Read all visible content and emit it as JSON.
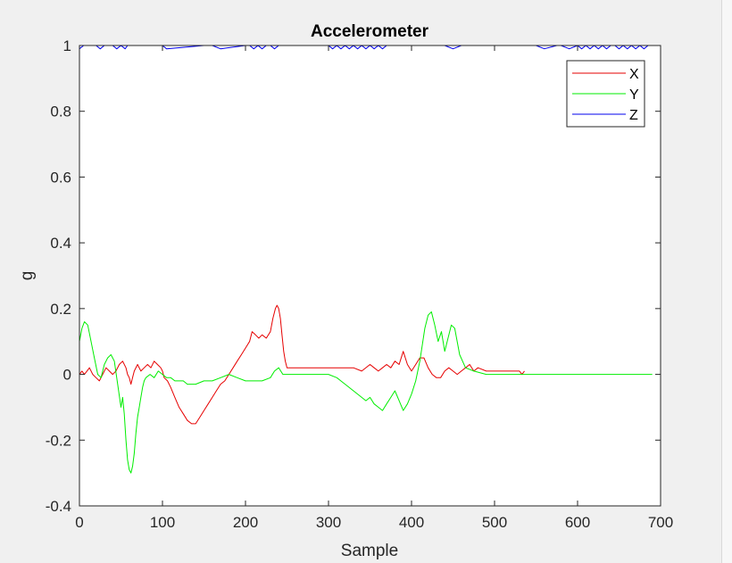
{
  "chart_data": {
    "type": "line",
    "title": "Accelerometer",
    "xlabel": "Sample",
    "ylabel": "g",
    "xlim": [
      0,
      700
    ],
    "ylim": [
      -0.4,
      1
    ],
    "xticks": [
      0,
      100,
      200,
      300,
      400,
      500,
      600,
      700
    ],
    "yticks": [
      -0.4,
      -0.2,
      0,
      0.2,
      0.4,
      0.6,
      0.8,
      1
    ],
    "xtick_labels": [
      "0",
      "100",
      "200",
      "300",
      "400",
      "500",
      "600",
      "700"
    ],
    "ytick_labels": [
      "-0.4",
      "-0.2",
      "0",
      "0.2",
      "0.4",
      "0.6",
      "0.8",
      "1"
    ],
    "grid": false,
    "legend_position": "top-right",
    "colors": {
      "X": "#e60000",
      "Y": "#00ee00",
      "Z": "#0000ee",
      "axes_background": "#ffffff",
      "figure_background": "#f0f0f0",
      "axis_color": "#262626"
    },
    "series": [
      {
        "name": "X",
        "color": "#e60000",
        "x": [
          0,
          3,
          6,
          9,
          12,
          16,
          20,
          24,
          28,
          32,
          36,
          40,
          44,
          48,
          52,
          56,
          58,
          60,
          62,
          64,
          66,
          70,
          74,
          78,
          82,
          86,
          90,
          94,
          98,
          100,
          102,
          106,
          110,
          115,
          120,
          125,
          130,
          135,
          140,
          145,
          150,
          155,
          160,
          165,
          170,
          175,
          180,
          185,
          190,
          195,
          200,
          205,
          208,
          212,
          216,
          220,
          225,
          230,
          233,
          236,
          238,
          240,
          242,
          244,
          246,
          248,
          250,
          255,
          260,
          270,
          280,
          290,
          300,
          310,
          320,
          330,
          340,
          350,
          355,
          360,
          365,
          370,
          375,
          380,
          385,
          390,
          395,
          400,
          405,
          410,
          415,
          420,
          425,
          430,
          435,
          440,
          445,
          450,
          455,
          460,
          465,
          470,
          475,
          480,
          490,
          500,
          510,
          520,
          530,
          533,
          536
        ],
        "values": [
          0.0,
          0.01,
          0.0,
          0.01,
          0.02,
          0.0,
          -0.01,
          -0.02,
          0.0,
          0.02,
          0.01,
          0.0,
          0.01,
          0.03,
          0.04,
          0.02,
          0.0,
          -0.01,
          -0.03,
          -0.01,
          0.01,
          0.03,
          0.01,
          0.02,
          0.03,
          0.02,
          0.04,
          0.03,
          0.02,
          0.01,
          -0.01,
          -0.02,
          -0.04,
          -0.07,
          -0.1,
          -0.12,
          -0.14,
          -0.15,
          -0.15,
          -0.13,
          -0.11,
          -0.09,
          -0.07,
          -0.05,
          -0.03,
          -0.02,
          0.0,
          0.02,
          0.04,
          0.06,
          0.08,
          0.1,
          0.13,
          0.12,
          0.11,
          0.12,
          0.11,
          0.13,
          0.17,
          0.2,
          0.21,
          0.2,
          0.17,
          0.12,
          0.07,
          0.04,
          0.02,
          0.02,
          0.02,
          0.02,
          0.02,
          0.02,
          0.02,
          0.02,
          0.02,
          0.02,
          0.01,
          0.03,
          0.02,
          0.01,
          0.02,
          0.03,
          0.02,
          0.04,
          0.03,
          0.07,
          0.03,
          0.01,
          0.03,
          0.05,
          0.05,
          0.02,
          0.0,
          -0.01,
          -0.01,
          0.01,
          0.02,
          0.01,
          0.0,
          0.01,
          0.02,
          0.03,
          0.01,
          0.02,
          0.01,
          0.01,
          0.01,
          0.01,
          0.01,
          0.0,
          0.01
        ]
      },
      {
        "name": "Y",
        "color": "#00ee00",
        "x": [
          0,
          3,
          6,
          10,
          14,
          18,
          22,
          26,
          30,
          34,
          38,
          42,
          46,
          50,
          52,
          54,
          56,
          58,
          60,
          62,
          64,
          66,
          68,
          70,
          72,
          74,
          76,
          78,
          80,
          85,
          90,
          95,
          100,
          105,
          110,
          115,
          120,
          125,
          130,
          140,
          150,
          160,
          170,
          180,
          190,
          200,
          210,
          220,
          230,
          235,
          240,
          245,
          250,
          260,
          270,
          280,
          290,
          300,
          310,
          320,
          330,
          340,
          345,
          350,
          355,
          360,
          365,
          370,
          375,
          380,
          385,
          390,
          395,
          400,
          405,
          410,
          413,
          416,
          420,
          424,
          428,
          432,
          436,
          440,
          444,
          448,
          452,
          458,
          465,
          475,
          490,
          520,
          560,
          600,
          650,
          690
        ],
        "values": [
          0.1,
          0.14,
          0.16,
          0.15,
          0.1,
          0.05,
          0.0,
          -0.01,
          0.03,
          0.05,
          0.06,
          0.04,
          -0.03,
          -0.1,
          -0.07,
          -0.12,
          -0.2,
          -0.26,
          -0.29,
          -0.3,
          -0.28,
          -0.24,
          -0.18,
          -0.13,
          -0.1,
          -0.07,
          -0.04,
          -0.02,
          -0.01,
          0.0,
          -0.01,
          0.01,
          0.0,
          -0.01,
          -0.01,
          -0.02,
          -0.02,
          -0.02,
          -0.03,
          -0.03,
          -0.02,
          -0.02,
          -0.01,
          0.0,
          -0.01,
          -0.02,
          -0.02,
          -0.02,
          -0.01,
          0.01,
          0.02,
          0.0,
          0.0,
          0.0,
          0.0,
          0.0,
          0.0,
          0.0,
          -0.01,
          -0.03,
          -0.05,
          -0.07,
          -0.08,
          -0.07,
          -0.09,
          -0.1,
          -0.11,
          -0.09,
          -0.07,
          -0.05,
          -0.08,
          -0.11,
          -0.09,
          -0.06,
          -0.02,
          0.04,
          0.09,
          0.14,
          0.18,
          0.19,
          0.15,
          0.1,
          0.13,
          0.07,
          0.11,
          0.15,
          0.14,
          0.06,
          0.02,
          0.01,
          0.0,
          0.0,
          0.0,
          0.0,
          0.0,
          0.0
        ]
      },
      {
        "name": "Z",
        "color": "#0000ee",
        "x": [
          0,
          5,
          10,
          20,
          25,
          30,
          40,
          45,
          50,
          55,
          58,
          65,
          85,
          100,
          105,
          150,
          160,
          170,
          200,
          205,
          210,
          215,
          220,
          225,
          230,
          235,
          240,
          245,
          250,
          260,
          280,
          300,
          305,
          310,
          315,
          320,
          325,
          330,
          335,
          340,
          345,
          350,
          355,
          360,
          365,
          370,
          380,
          400,
          420,
          430,
          440,
          450,
          460,
          480,
          500,
          550,
          560,
          575,
          580,
          590,
          600,
          605,
          610,
          615,
          620,
          625,
          630,
          635,
          640,
          645,
          650,
          655,
          660,
          665,
          670,
          675,
          680,
          685,
          690
        ],
        "values": [
          0.99,
          1.0,
          1.0,
          1.0,
          0.99,
          1.0,
          1.0,
          0.99,
          1.0,
          0.99,
          1.0,
          1.0,
          1.0,
          1.0,
          0.99,
          1.0,
          1.0,
          0.99,
          1.0,
          1.0,
          0.99,
          1.0,
          0.99,
          1.0,
          1.0,
          0.99,
          1.0,
          1.0,
          1.0,
          1.0,
          1.0,
          1.0,
          0.99,
          1.0,
          0.99,
          1.0,
          0.99,
          1.0,
          0.99,
          1.0,
          0.99,
          1.0,
          0.99,
          1.0,
          0.99,
          1.0,
          1.0,
          1.0,
          1.0,
          1.0,
          1.0,
          0.99,
          1.0,
          1.0,
          1.0,
          1.0,
          0.99,
          1.0,
          1.0,
          0.99,
          1.0,
          0.99,
          1.0,
          0.99,
          1.0,
          0.99,
          1.0,
          0.99,
          1.0,
          1.0,
          0.99,
          1.0,
          0.99,
          1.0,
          0.99,
          1.0,
          0.99,
          1.0,
          1.0
        ]
      }
    ]
  }
}
